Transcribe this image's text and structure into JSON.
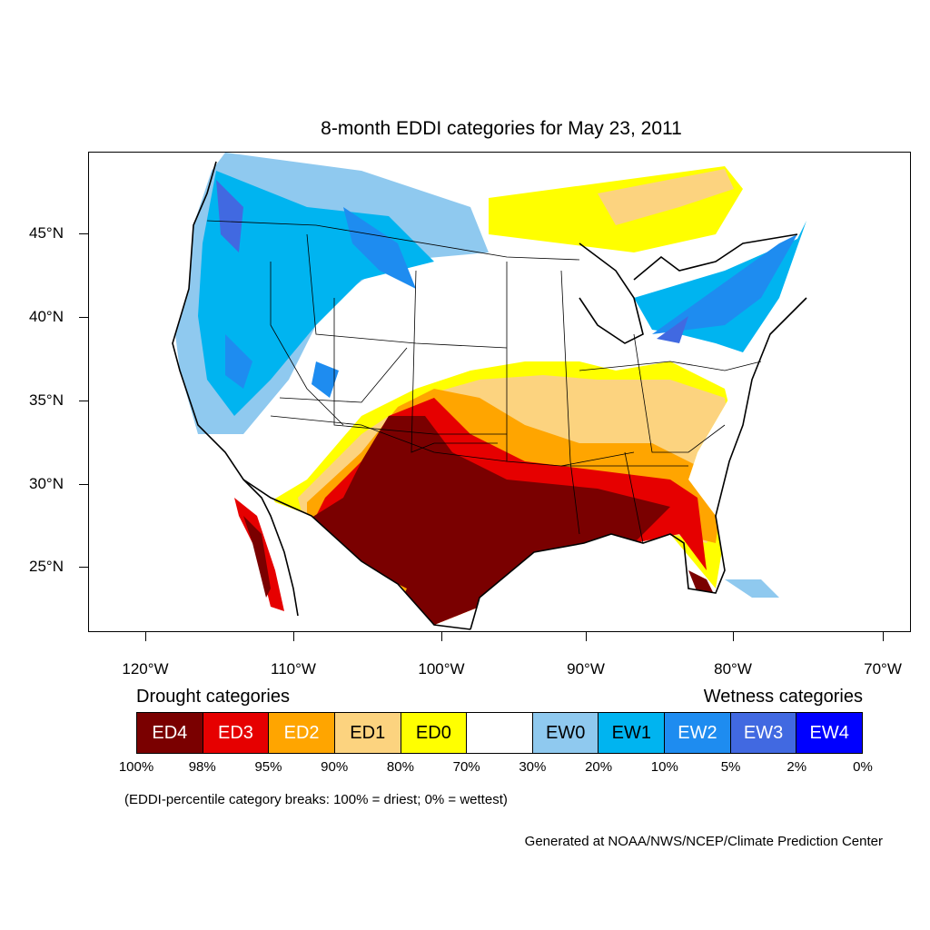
{
  "title": "8-month EDDI categories for May 23, 2011",
  "map": {
    "region": "Contiguous United States",
    "projection": "Lambert conformal",
    "lat_labels": [
      "45°N",
      "40°N",
      "35°N",
      "30°N",
      "25°N"
    ],
    "lon_labels": [
      "120°W",
      "110°W",
      "100°W",
      "90°W",
      "80°W",
      "70°W"
    ],
    "background_color": "#ffffff",
    "water_color": "#ffffff"
  },
  "legend": {
    "drought_title": "Drought categories",
    "wetness_title": "Wetness categories",
    "categories": [
      {
        "label": "ED4",
        "color": "#7a0000",
        "text_color": "#ffffff"
      },
      {
        "label": "ED3",
        "color": "#e60000",
        "text_color": "#ffffff"
      },
      {
        "label": "ED2",
        "color": "#ffa500",
        "text_color": "#ffffff"
      },
      {
        "label": "ED1",
        "color": "#fcd37f",
        "text_color": "#000000"
      },
      {
        "label": "ED0",
        "color": "#ffff00",
        "text_color": "#000000"
      },
      {
        "label": "",
        "color": "#ffffff",
        "text_color": "#000000"
      },
      {
        "label": "EW0",
        "color": "#8fc9ef",
        "text_color": "#000000"
      },
      {
        "label": "EW1",
        "color": "#00b4f0",
        "text_color": "#000000"
      },
      {
        "label": "EW2",
        "color": "#1e8cf0",
        "text_color": "#ffffff"
      },
      {
        "label": "EW3",
        "color": "#4169e1",
        "text_color": "#ffffff"
      },
      {
        "label": "EW4",
        "color": "#0000ff",
        "text_color": "#ffffff"
      }
    ],
    "breaks": [
      "100%",
      "98%",
      "95%",
      "90%",
      "80%",
      "70%",
      "30%",
      "20%",
      "10%",
      "5%",
      "2%",
      "0%"
    ],
    "note": "(EDDI-percentile category breaks: 100% = driest; 0% = wettest)"
  },
  "credit": "Generated at NOAA/NWS/NCEP/Climate Prediction Center"
}
